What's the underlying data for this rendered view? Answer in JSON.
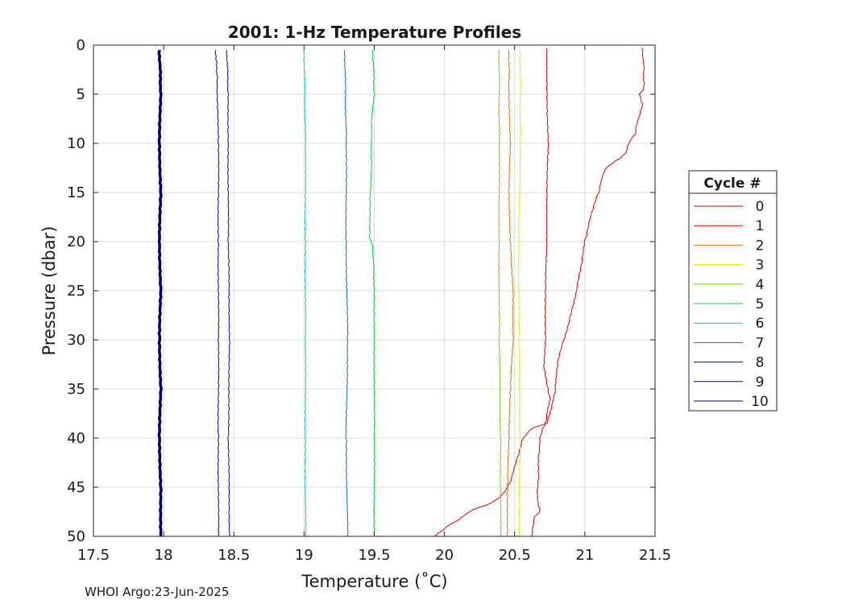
{
  "chart_data": {
    "type": "line",
    "title": "2001: 1-Hz Temperature Profiles",
    "xlabel": "Temperature (˚C)",
    "ylabel": "Pressure (dbar)",
    "xlim": [
      17.5,
      21.5
    ],
    "ylim": [
      0,
      50
    ],
    "y_reversed": true,
    "grid": true,
    "xticks": [
      "17.5",
      "18",
      "18.5",
      "19",
      "19.5",
      "20",
      "20.5",
      "21",
      "21.5"
    ],
    "yticks": [
      "0",
      "5",
      "10",
      "15",
      "20",
      "25",
      "30",
      "35",
      "40",
      "45",
      "50"
    ],
    "legend": {
      "title": "Cycle #",
      "placement": "outside-right"
    },
    "series": [
      {
        "name": "0",
        "color": "#d00000",
        "points": [
          [
            20.73,
            0.3
          ],
          [
            20.73,
            5
          ],
          [
            20.74,
            10
          ],
          [
            20.73,
            15
          ],
          [
            20.73,
            20
          ],
          [
            20.72,
            25
          ],
          [
            20.72,
            30
          ],
          [
            20.71,
            33
          ],
          [
            20.75,
            36
          ],
          [
            20.72,
            38.5
          ],
          [
            20.7,
            39
          ],
          [
            20.68,
            40
          ],
          [
            20.67,
            42
          ],
          [
            20.67,
            44
          ],
          [
            20.66,
            46
          ],
          [
            20.68,
            47.5
          ],
          [
            20.64,
            48
          ],
          [
            20.63,
            49
          ],
          [
            20.62,
            50
          ]
        ]
      },
      {
        "name": "1",
        "color": "#e00000",
        "points": [
          [
            21.41,
            0.3
          ],
          [
            21.42,
            2
          ],
          [
            21.42,
            4.5
          ],
          [
            21.39,
            5
          ],
          [
            21.41,
            6
          ],
          [
            21.37,
            8
          ],
          [
            21.36,
            9
          ],
          [
            21.31,
            10
          ],
          [
            21.29,
            11
          ],
          [
            21.25,
            11.5
          ],
          [
            21.2,
            12
          ],
          [
            21.15,
            12.5
          ],
          [
            21.12,
            13.5
          ],
          [
            21.1,
            15
          ],
          [
            21.07,
            16
          ],
          [
            21.03,
            18
          ],
          [
            21.0,
            20
          ],
          [
            20.98,
            22
          ],
          [
            20.94,
            25
          ],
          [
            20.89,
            28
          ],
          [
            20.85,
            30
          ],
          [
            20.81,
            32
          ],
          [
            20.79,
            35
          ],
          [
            20.76,
            37
          ],
          [
            20.73,
            38.5
          ],
          [
            20.62,
            39
          ],
          [
            20.56,
            40
          ],
          [
            20.52,
            42
          ],
          [
            20.48,
            44
          ],
          [
            20.45,
            45
          ],
          [
            20.4,
            46
          ],
          [
            20.3,
            46.8
          ],
          [
            20.2,
            47.3
          ],
          [
            20.13,
            48
          ],
          [
            20.02,
            49
          ],
          [
            19.93,
            50
          ]
        ]
      },
      {
        "name": "2",
        "color": "#e07000",
        "points": [
          [
            20.46,
            0.5
          ],
          [
            20.46,
            5
          ],
          [
            20.47,
            10
          ],
          [
            20.46,
            15
          ],
          [
            20.47,
            20
          ],
          [
            20.49,
            25
          ],
          [
            20.49,
            30
          ],
          [
            20.47,
            35
          ],
          [
            20.46,
            40
          ],
          [
            20.45,
            45
          ],
          [
            20.45,
            50
          ]
        ]
      },
      {
        "name": "3",
        "color": "#e8e800",
        "points": [
          [
            20.54,
            0.5
          ],
          [
            20.54,
            10
          ],
          [
            20.53,
            20
          ],
          [
            20.53,
            30
          ],
          [
            20.54,
            40
          ],
          [
            20.53,
            50
          ]
        ]
      },
      {
        "name": "4",
        "color": "#70d000",
        "points": [
          [
            20.39,
            0.5
          ],
          [
            20.39,
            10
          ],
          [
            20.39,
            20
          ],
          [
            20.39,
            30
          ],
          [
            20.4,
            40
          ],
          [
            20.4,
            50
          ]
        ]
      },
      {
        "name": "5",
        "color": "#00d040",
        "points": [
          [
            19.49,
            0.5
          ],
          [
            19.5,
            5
          ],
          [
            19.48,
            8
          ],
          [
            19.48,
            12
          ],
          [
            19.47,
            16
          ],
          [
            19.47,
            19.8
          ],
          [
            19.49,
            20.5
          ],
          [
            19.5,
            25
          ],
          [
            19.5,
            30
          ],
          [
            19.5,
            40
          ],
          [
            19.5,
            50
          ]
        ]
      },
      {
        "name": "6",
        "color": "#00d0d0",
        "points": [
          [
            19.0,
            0.5
          ],
          [
            19.01,
            10
          ],
          [
            19.01,
            20
          ],
          [
            19.01,
            30
          ],
          [
            19.01,
            40
          ],
          [
            19.01,
            50
          ]
        ]
      },
      {
        "name": "7",
        "color": "#0070d0",
        "points": [
          [
            19.29,
            0.5
          ],
          [
            19.3,
            10
          ],
          [
            19.3,
            20
          ],
          [
            19.31,
            30
          ],
          [
            19.3,
            40
          ],
          [
            19.31,
            50
          ]
        ]
      },
      {
        "name": "8",
        "color": "#0000e0",
        "points": [
          [
            18.45,
            0.5
          ],
          [
            18.46,
            5
          ],
          [
            18.46,
            10
          ],
          [
            18.46,
            20
          ],
          [
            18.47,
            30
          ],
          [
            18.46,
            40
          ],
          [
            18.47,
            50
          ]
        ]
      },
      {
        "name": "9",
        "color": "#0000b0",
        "points": [
          [
            18.37,
            0.5
          ],
          [
            18.38,
            3
          ],
          [
            18.38,
            5
          ],
          [
            18.39,
            10
          ],
          [
            18.39,
            20
          ],
          [
            18.39,
            30
          ],
          [
            18.39,
            40
          ],
          [
            18.39,
            50
          ]
        ]
      },
      {
        "name": "10",
        "color": "#000070",
        "points": [
          [
            17.97,
            0.5
          ],
          [
            17.98,
            5
          ],
          [
            17.97,
            10
          ],
          [
            17.98,
            15
          ],
          [
            17.97,
            20
          ],
          [
            17.98,
            25
          ],
          [
            17.97,
            30
          ],
          [
            17.98,
            35
          ],
          [
            17.97,
            40
          ],
          [
            17.98,
            45
          ],
          [
            17.98,
            50
          ]
        ]
      }
    ]
  },
  "footer": "WHOI Argo:23-Jun-2025"
}
